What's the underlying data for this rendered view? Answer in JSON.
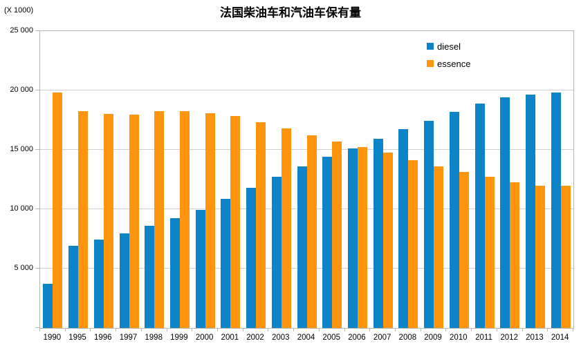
{
  "title": "法国柴油车和汽油车保有量",
  "axis_unit_label": "(X 1000)",
  "colors": {
    "diesel": "#0e84c8",
    "essence": "#ff950e",
    "gridline": "#cfcfcf",
    "axis": "#b5b5b5",
    "text": "#000000",
    "background": "#ffffff"
  },
  "legend": {
    "position": "top-right",
    "items": [
      {
        "label": "diesel",
        "color": "#0e84c8"
      },
      {
        "label": "essence",
        "color": "#ff950e"
      }
    ]
  },
  "chart_data": {
    "type": "bar",
    "title": "法国柴油车和汽油车保有量",
    "xlabel": "",
    "ylabel": "(X 1000)",
    "ylim": [
      0,
      25000
    ],
    "ytick_interval": 5000,
    "ytick_labels": [
      "5 000",
      "10 000",
      "15 000",
      "20 000",
      "25 000"
    ],
    "grid": true,
    "legend_position": "top-right",
    "categories": [
      "1990",
      "1995",
      "1996",
      "1997",
      "1998",
      "1999",
      "2000",
      "2001",
      "2002",
      "2003",
      "2004",
      "2005",
      "2006",
      "2007",
      "2008",
      "2009",
      "2010",
      "2011",
      "2012",
      "2013",
      "2014"
    ],
    "series": [
      {
        "name": "diesel",
        "color": "#0e84c8",
        "values": [
          3700,
          6900,
          7450,
          7950,
          8600,
          9250,
          9950,
          10850,
          11800,
          12750,
          13600,
          14400,
          15100,
          15950,
          16750,
          17450,
          18200,
          18900,
          19400,
          19650,
          19850
        ]
      },
      {
        "name": "essence",
        "color": "#ff950e",
        "values": [
          19850,
          18250,
          18000,
          17950,
          18250,
          18250,
          18100,
          17850,
          17350,
          16800,
          16200,
          15700,
          15250,
          14750,
          14100,
          13600,
          13150,
          12750,
          12250,
          12000,
          11950
        ]
      }
    ]
  }
}
